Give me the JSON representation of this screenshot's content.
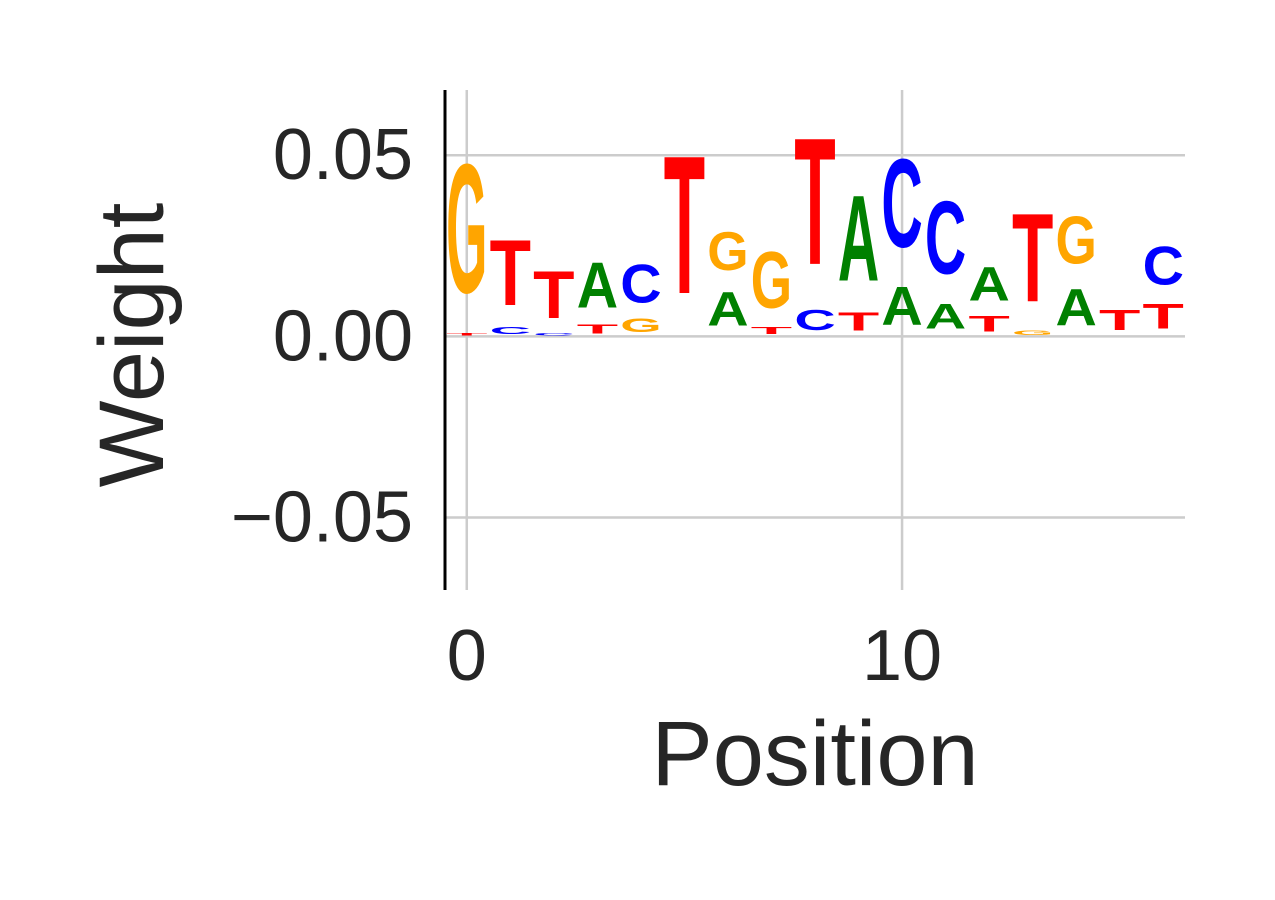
{
  "chart_data": {
    "type": "logo",
    "title": "",
    "xlabel": "Position",
    "ylabel": "Weight",
    "xlim": [
      -0.5,
      16.5
    ],
    "ylim": [
      -0.07,
      0.068
    ],
    "xticks": [
      0,
      10
    ],
    "xtick_labels": [
      "0",
      "10"
    ],
    "yticks": [
      -0.05,
      0.0,
      0.05
    ],
    "ytick_labels": [
      "−0.05",
      "0.00",
      "0.05"
    ],
    "grid": true,
    "colors": {
      "A": "#008000",
      "C": "#0000ff",
      "G": "#ffa500",
      "T": "#ff0000"
    },
    "positions": [
      {
        "x": 0,
        "letters": [
          {
            "base": "T",
            "weight": 0.001
          },
          {
            "base": "G",
            "weight": 0.057
          }
        ]
      },
      {
        "x": 1,
        "letters": [
          {
            "base": "C",
            "weight": 0.003
          },
          {
            "base": "T",
            "weight": 0.029
          }
        ]
      },
      {
        "x": 2,
        "letters": [
          {
            "base": "C",
            "weight": 0.001
          },
          {
            "base": "T",
            "weight": 0.021
          }
        ]
      },
      {
        "x": 3,
        "letters": [
          {
            "base": "T",
            "weight": 0.004
          },
          {
            "base": "A",
            "weight": 0.02
          }
        ]
      },
      {
        "x": 4,
        "letters": [
          {
            "base": "G",
            "weight": 0.006
          },
          {
            "base": "C",
            "weight": 0.017
          }
        ]
      },
      {
        "x": 5,
        "letters": [
          {
            "base": "T",
            "weight": 0.061
          }
        ]
      },
      {
        "x": 6,
        "letters": [
          {
            "base": "A",
            "weight": 0.015
          },
          {
            "base": "G",
            "weight": 0.017
          }
        ]
      },
      {
        "x": 7,
        "letters": [
          {
            "base": "T",
            "weight": 0.003
          },
          {
            "base": "G",
            "weight": 0.025
          }
        ]
      },
      {
        "x": 8,
        "letters": [
          {
            "base": "C",
            "weight": 0.009
          },
          {
            "base": "T",
            "weight": 0.056
          }
        ]
      },
      {
        "x": 9,
        "letters": [
          {
            "base": "T",
            "weight": 0.008
          },
          {
            "base": "A",
            "weight": 0.038
          }
        ]
      },
      {
        "x": 10,
        "letters": [
          {
            "base": "A",
            "weight": 0.017
          },
          {
            "base": "C",
            "weight": 0.039
          }
        ]
      },
      {
        "x": 11,
        "letters": [
          {
            "base": "A",
            "weight": 0.011
          },
          {
            "base": "C",
            "weight": 0.032
          }
        ]
      },
      {
        "x": 12,
        "letters": [
          {
            "base": "T",
            "weight": 0.007
          },
          {
            "base": "A",
            "weight": 0.015
          }
        ]
      },
      {
        "x": 13,
        "letters": [
          {
            "base": "G",
            "weight": 0.002
          },
          {
            "base": "T",
            "weight": 0.039
          }
        ]
      },
      {
        "x": 14,
        "letters": [
          {
            "base": "A",
            "weight": 0.016
          },
          {
            "base": "G",
            "weight": 0.021
          }
        ]
      },
      {
        "x": 15,
        "letters": [
          {
            "base": "T",
            "weight": 0.009
          }
        ]
      },
      {
        "x": 16,
        "letters": [
          {
            "base": "T",
            "weight": 0.011
          },
          {
            "base": "C",
            "weight": 0.017
          }
        ]
      }
    ]
  }
}
